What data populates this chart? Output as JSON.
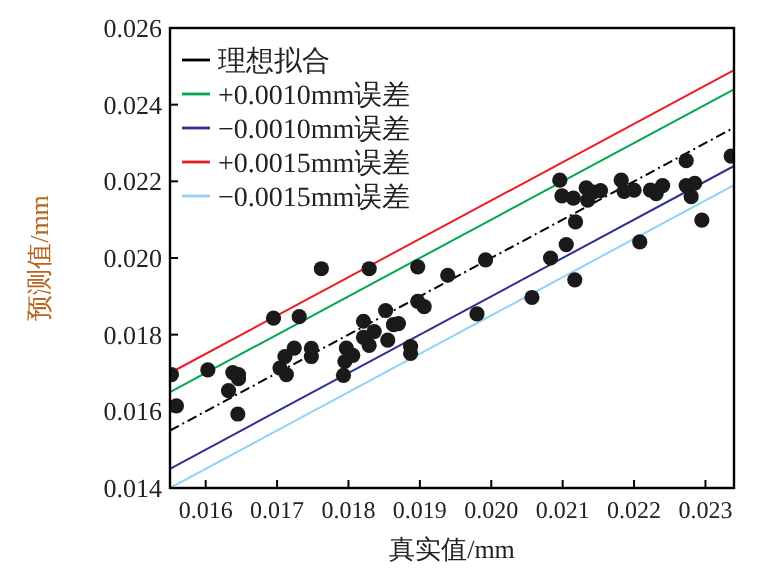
{
  "chart_data": {
    "type": "line",
    "xlabel": "真实值/mm",
    "ylabel": "预测值/mm",
    "xlim": [
      0.0155,
      0.0234
    ],
    "ylim": [
      0.014,
      0.026
    ],
    "xticks": [
      0.016,
      0.017,
      0.018,
      0.019,
      {
        "value": 0.02,
        "label": "0.020"
      },
      0.021,
      0.022,
      0.023
    ],
    "yticks": [
      0.014,
      0.016,
      0.018,
      {
        "value": 0.02,
        "label": "0.020"
      },
      0.022,
      0.024,
      0.026
    ],
    "grid": false,
    "legend": "top left",
    "series": [
      {
        "name": "理想拟合",
        "color": "#000000",
        "line_style": "dashed",
        "x": [
          0.0155,
          0.0234
        ],
        "values": [
          0.0155,
          0.0234
        ]
      },
      {
        "name": "+0.0010mm误差",
        "color": "#00a651",
        "line_style": "solid",
        "x": [
          0.0155,
          0.0234
        ],
        "values": [
          0.0165,
          0.0244
        ]
      },
      {
        "name": "−0.0010mm误差",
        "color": "#2e3192",
        "line_style": "solid",
        "x": [
          0.0155,
          0.0234
        ],
        "values": [
          0.0145,
          0.0224
        ]
      },
      {
        "name": "+0.0015mm误差",
        "color": "#ed1c24",
        "line_style": "solid",
        "x": [
          0.0155,
          0.0234
        ],
        "values": [
          0.017,
          0.0249
        ]
      },
      {
        "name": "−0.0015mm误差",
        "color": "#8fd3f5",
        "line_style": "solid",
        "x": [
          0.0155,
          0.0234
        ],
        "values": [
          0.014,
          0.0219
        ]
      },
      {
        "type": "scatter",
        "color": "#1a1a1a",
        "marker": "circle",
        "x": [
          0.01552,
          0.01559,
          0.01603,
          0.01632,
          0.01638,
          0.01646,
          0.01646,
          0.01645,
          0.01695,
          0.01704,
          0.01711,
          0.01713,
          0.01724,
          0.01731,
          0.01748,
          0.01748,
          0.01762,
          0.01793,
          0.01795,
          0.01797,
          0.01806,
          0.01821,
          0.01821,
          0.01829,
          0.01829,
          0.01836,
          0.01852,
          0.01855,
          0.01863,
          0.0187,
          0.01887,
          0.01887,
          0.01897,
          0.01897,
          0.01906,
          0.01939,
          0.0198,
          0.01992,
          0.02057,
          0.02083,
          0.02096,
          0.02099,
          0.02105,
          0.02115,
          0.02117,
          0.02118,
          0.02133,
          0.02135,
          0.02143,
          0.02153,
          0.02182,
          0.02186,
          0.022,
          0.02208,
          0.02223,
          0.02231,
          0.0224,
          0.02273,
          0.02273,
          0.0228,
          0.02285,
          0.02295,
          0.02336
        ],
        "values": [
          0.01696,
          0.01614,
          0.01708,
          0.01654,
          0.01701,
          0.01696,
          0.01685,
          0.01593,
          0.01843,
          0.01713,
          0.01743,
          0.01696,
          0.01765,
          0.01847,
          0.01764,
          0.01743,
          0.01972,
          0.01694,
          0.0173,
          0.01765,
          0.01746,
          0.01793,
          0.01835,
          0.01972,
          0.01772,
          0.01808,
          0.01863,
          0.01786,
          0.01826,
          0.01829,
          0.01769,
          0.01751,
          0.01977,
          0.01887,
          0.01873,
          0.01955,
          0.01854,
          0.01995,
          0.01897,
          0.02,
          0.02203,
          0.02162,
          0.02035,
          0.02156,
          0.01943,
          0.02094,
          0.02183,
          0.02151,
          0.02172,
          0.02176,
          0.02203,
          0.02174,
          0.02177,
          0.02042,
          0.02177,
          0.02168,
          0.02189,
          0.02254,
          0.02189,
          0.0216,
          0.02195,
          0.02099,
          0.02266
        ]
      }
    ]
  }
}
